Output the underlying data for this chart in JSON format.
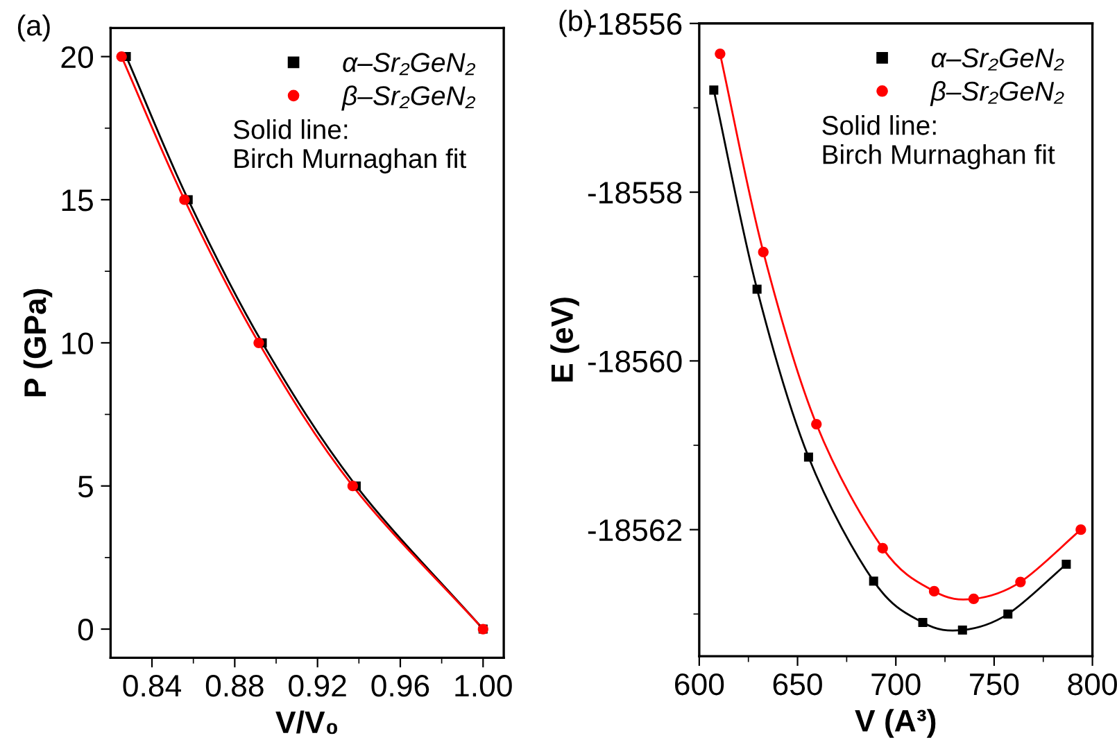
{
  "chart_data": [
    {
      "type": "scatter",
      "title": "(a)",
      "xlabel": "V/V₀",
      "ylabel": "P (GPa)",
      "xlim": [
        0.82,
        1.01
      ],
      "ylim": [
        -1,
        21
      ],
      "xticks": [
        0.84,
        {
          "value": 0.86,
          "label": null
        },
        0.88,
        {
          "value": 0.9,
          "label": null
        },
        0.92,
        {
          "value": 0.94,
          "label": null
        },
        0.96,
        {
          "value": 0.98,
          "label": null
        },
        {
          "value": 1.0,
          "label": "1.00"
        }
      ],
      "yticks": [
        0,
        {
          "value": 2.5,
          "label": null
        },
        5,
        {
          "value": 7.5,
          "label": null
        },
        10,
        {
          "value": 12.5,
          "label": null
        },
        15,
        {
          "value": 17.5,
          "label": null
        },
        20
      ],
      "grid": false,
      "legend": "top right",
      "annotations": [
        "Solid line:\nBirch Murnaghan fit"
      ],
      "series": [
        {
          "type": "line",
          "color": "#000000",
          "x": [
            0.8276,
            0.8575,
            0.8933,
            0.9387,
            1.0
          ],
          "values": [
            20,
            15,
            10,
            5,
            0
          ]
        },
        {
          "type": "line",
          "color": "#ff0000",
          "x": [
            0.8253,
            0.8557,
            0.8916,
            0.937,
            1.0
          ],
          "values": [
            20,
            15,
            10,
            5,
            0
          ]
        },
        {
          "name": "α–Sr₂GeN₂",
          "marker": "square",
          "color": "#000000",
          "x": [
            0.8276,
            0.8575,
            0.8933,
            0.9387,
            1.0
          ],
          "values": [
            20,
            15,
            10,
            5,
            0
          ]
        },
        {
          "name": "β–Sr₂GeN₂",
          "marker": "circle",
          "color": "#ff0000",
          "x": [
            0.8253,
            0.8557,
            0.8916,
            0.937,
            1.0
          ],
          "values": [
            20,
            15,
            10,
            5,
            0
          ]
        }
      ]
    },
    {
      "type": "scatter",
      "title": "(b)",
      "xlabel": "V (A³)",
      "ylabel": "E (eV)",
      "xlim": [
        600,
        800
      ],
      "ylim": [
        -18563.5,
        -18556
      ],
      "xticks": [
        600,
        {
          "value": 625,
          "label": null
        },
        650,
        {
          "value": 675,
          "label": null
        },
        700,
        {
          "value": 725,
          "label": null
        },
        750,
        {
          "value": 775,
          "label": null
        },
        800
      ],
      "yticks": [
        {
          "value": -18563,
          "label": null
        },
        -18562,
        {
          "value": -18561,
          "label": null
        },
        -18560,
        {
          "value": -18559,
          "label": null
        },
        -18558,
        {
          "value": -18557,
          "label": null
        },
        -18556
      ],
      "grid": false,
      "legend": "top right",
      "annotations": [
        "Solid line:\nBirch Murnaghan fit"
      ],
      "series": [
        {
          "type": "line",
          "color": "#000000",
          "x": [
            607.4,
            629.4,
            655.6,
            688.7,
            713.7,
            733.9,
            757.0,
            786.7
          ],
          "values": [
            -18556.79,
            -18559.15,
            -18561.14,
            -18562.61,
            -18563.1,
            -18563.19,
            -18563.0,
            -18562.41
          ]
        },
        {
          "type": "line",
          "color": "#ff0000",
          "x": [
            610.6,
            632.6,
            659.6,
            693.3,
            719.5,
            739.6,
            763.4,
            794.1
          ],
          "values": [
            -18556.36,
            -18558.71,
            -18560.75,
            -18562.22,
            -18562.73,
            -18562.82,
            -18562.62,
            -18562.0
          ]
        },
        {
          "name": "α–Sr₂GeN₂",
          "marker": "square",
          "color": "#000000",
          "x": [
            607.4,
            629.4,
            655.6,
            688.7,
            713.7,
            733.9,
            757.0,
            786.7
          ],
          "values": [
            -18556.79,
            -18559.15,
            -18561.14,
            -18562.61,
            -18563.1,
            -18563.19,
            -18563.0,
            -18562.41
          ]
        },
        {
          "name": "β–Sr₂GeN₂",
          "marker": "circle",
          "color": "#ff0000",
          "x": [
            610.6,
            632.6,
            659.6,
            693.3,
            719.5,
            739.6,
            763.4,
            794.1
          ],
          "values": [
            -18556.36,
            -18558.71,
            -18560.75,
            -18562.22,
            -18562.73,
            -18562.82,
            -18562.62,
            -18562.0
          ]
        }
      ]
    }
  ]
}
